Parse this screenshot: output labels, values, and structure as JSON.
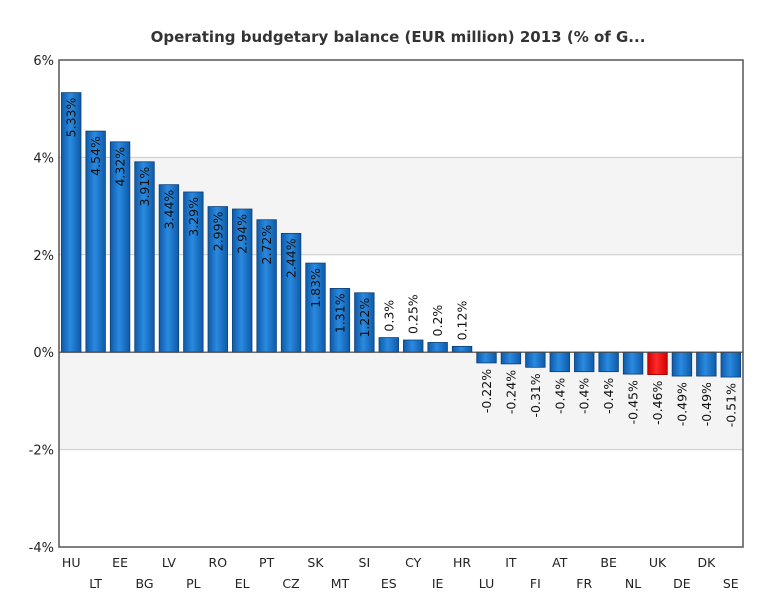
{
  "chart_data": {
    "type": "bar",
    "title": "Operating budgetary balance (EUR million) 2013 (% of G...",
    "xlabel": "",
    "ylabel": "",
    "ylim": [
      -4,
      6
    ],
    "yticks": [
      6,
      4,
      2,
      0,
      -2,
      -4
    ],
    "ytick_labels": [
      "6%",
      "4%",
      "2%",
      "0%",
      "-2%",
      "-4%"
    ],
    "grid": true,
    "legend": "none",
    "categories": [
      "HU",
      "LT",
      "EE",
      "BG",
      "LV",
      "PL",
      "RO",
      "EL",
      "PT",
      "CZ",
      "SK",
      "MT",
      "SI",
      "ES",
      "CY",
      "IE",
      "HR",
      "LU",
      "IT",
      "FI",
      "AT",
      "FR",
      "BE",
      "NL",
      "UK",
      "DE",
      "DK",
      "SE"
    ],
    "values": [
      5.33,
      4.54,
      4.32,
      3.91,
      3.44,
      3.29,
      2.99,
      2.94,
      2.72,
      2.44,
      1.83,
      1.31,
      1.22,
      0.3,
      0.25,
      0.2,
      0.12,
      -0.22,
      -0.24,
      -0.31,
      -0.4,
      -0.4,
      -0.4,
      -0.45,
      -0.46,
      -0.49,
      -0.49,
      -0.51
    ],
    "data_labels": [
      "5.33%",
      "4.54%",
      "4.32%",
      "3.91%",
      "3.44%",
      "3.29%",
      "2.99%",
      "2.94%",
      "2.72%",
      "2.44%",
      "1.83%",
      "1.31%",
      "1.22%",
      "0.3%",
      "0.25%",
      "0.2%",
      "0.12%",
      "-0.22%",
      "-0.24%",
      "-0.31%",
      "-0.4%",
      "-0.4%",
      "-0.4%",
      "-0.45%",
      "-0.46%",
      "-0.49%",
      "-0.49%",
      "-0.51%"
    ],
    "highlight_category": "UK",
    "colors": {
      "bar": "#1a73c8",
      "bar_highlight": "#ee1111",
      "band_alt": "#f4f4f4",
      "grid": "#cccccc",
      "axis": "#555555"
    }
  }
}
